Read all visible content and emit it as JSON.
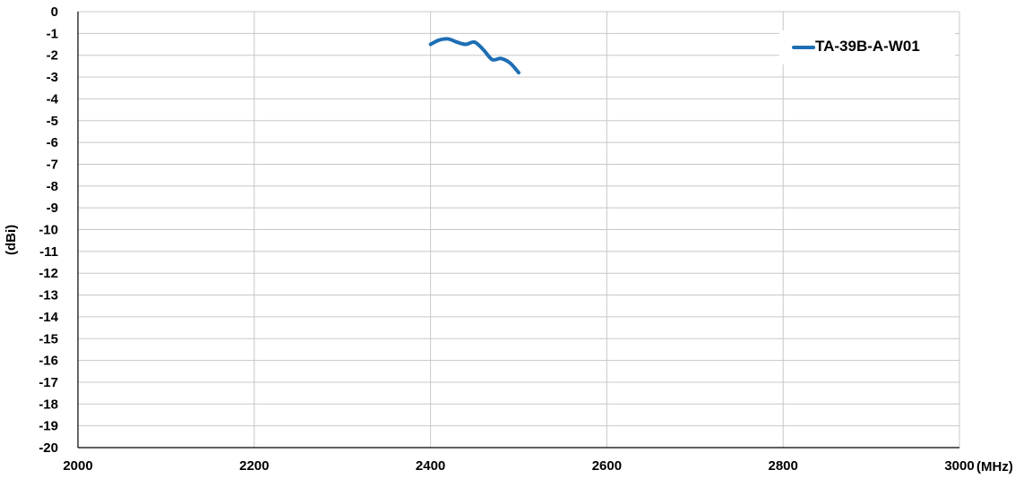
{
  "chart_data": {
    "type": "line",
    "title": "",
    "xlabel": "(MHz)",
    "ylabel": "(dBi)",
    "xlim": [
      2000,
      3000
    ],
    "ylim": [
      -20,
      0
    ],
    "xticks": [
      "2000",
      "2200",
      "2400",
      "2600",
      "2800",
      "3000"
    ],
    "yticks": [
      "0",
      "-1",
      "-2",
      "-3",
      "-4",
      "-5",
      "-6",
      "-7",
      "-8",
      "-9",
      "-10",
      "-11",
      "-12",
      "-13",
      "-14",
      "-15",
      "-16",
      "-17",
      "-18",
      "-19",
      "-20"
    ],
    "grid": true,
    "legend_position": "top-right",
    "series": [
      {
        "name": "TA-39B-A-W01",
        "color": "#1e6eb4",
        "x": [
          2400,
          2410,
          2420,
          2430,
          2440,
          2450,
          2460,
          2470,
          2480,
          2490,
          2500
        ],
        "y": [
          -1.5,
          -1.3,
          -1.25,
          -1.4,
          -1.5,
          -1.4,
          -1.75,
          -2.2,
          -2.15,
          -2.35,
          -2.8
        ]
      }
    ]
  }
}
